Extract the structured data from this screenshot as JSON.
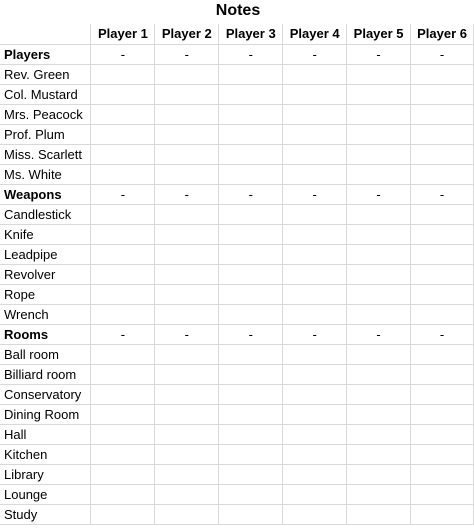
{
  "sheet": {
    "title": "Notes",
    "players": [
      "Player 1",
      "Player 2",
      "Player 3",
      "Player 4",
      "Player 5",
      "Player 6"
    ],
    "sections": [
      {
        "header": "Players",
        "items": [
          "Rev. Green",
          "Col. Mustard",
          "Mrs. Peacock",
          "Prof. Plum",
          "Miss. Scarlett",
          "Ms. White"
        ]
      },
      {
        "header": "Weapons",
        "items": [
          "Candlestick",
          "Knife",
          "Leadpipe",
          "Revolver",
          "Rope",
          "Wrench"
        ]
      },
      {
        "header": "Rooms",
        "items": [
          "Ball room",
          "Billiard room",
          "Conservatory",
          "Dining Room",
          "Hall",
          "Kitchen",
          "Library",
          "Lounge",
          "Study"
        ]
      }
    ],
    "header_marker": "-"
  }
}
